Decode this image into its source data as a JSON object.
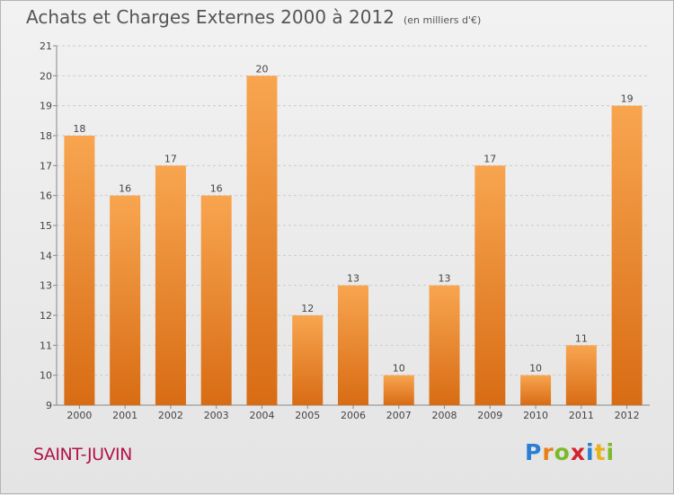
{
  "title": "Achats et Charges Externes 2000 à 2012",
  "unit": "(en milliers d'€)",
  "town": "SAINT-JUVIN",
  "logo": {
    "text": "Proxiti",
    "letters": [
      {
        "ch": "P",
        "color": "#2a7fd4"
      },
      {
        "ch": "r",
        "color": "#e8801a"
      },
      {
        "ch": "o",
        "color": "#7cba2a"
      },
      {
        "ch": "x",
        "color": "#d4232e"
      },
      {
        "ch": "i",
        "color": "#2a7fd4"
      },
      {
        "ch": "t",
        "color": "#e8b21a"
      },
      {
        "ch": "i",
        "color": "#7cba2a"
      }
    ]
  },
  "colors": {
    "bar_top": "#f8a550",
    "bar_bottom": "#d86c14",
    "grid": "#cccccc",
    "axis_text": "#444444"
  },
  "chart_data": {
    "type": "bar",
    "categories": [
      "2000",
      "2001",
      "2002",
      "2003",
      "2004",
      "2005",
      "2006",
      "2007",
      "2008",
      "2009",
      "2010",
      "2011",
      "2012"
    ],
    "values": [
      18,
      16,
      17,
      16,
      20,
      12,
      13,
      10,
      13,
      17,
      10,
      11,
      19
    ],
    "ylim": [
      9,
      21
    ],
    "yticks": [
      9,
      10,
      11,
      12,
      13,
      14,
      15,
      16,
      17,
      18,
      19,
      20,
      21
    ],
    "grid": "horizontal-dashed",
    "legend": "none"
  }
}
